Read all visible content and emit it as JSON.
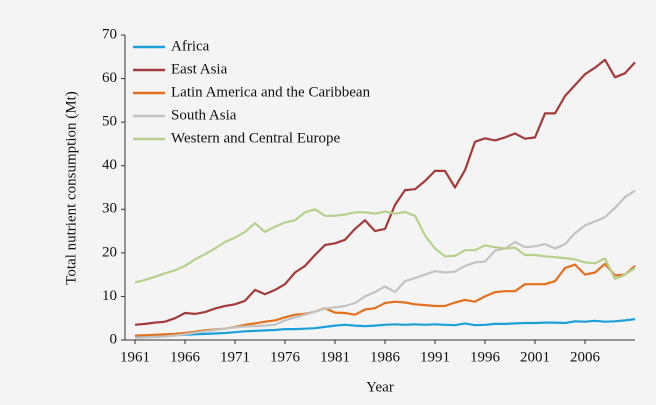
{
  "chart_data": {
    "type": "line",
    "x_label": "Year",
    "y_label": "Total nutrient consumption (Mt)",
    "x": [
      1961,
      1962,
      1963,
      1964,
      1965,
      1966,
      1967,
      1968,
      1969,
      1970,
      1971,
      1972,
      1973,
      1974,
      1975,
      1976,
      1977,
      1978,
      1979,
      1980,
      1981,
      1982,
      1983,
      1984,
      1985,
      1986,
      1987,
      1988,
      1989,
      1990,
      1991,
      1992,
      1993,
      1994,
      1995,
      1996,
      1997,
      1998,
      1999,
      2000,
      2001,
      2002,
      2003,
      2004,
      2005,
      2006,
      2007,
      2008,
      2009,
      2010,
      2011
    ],
    "xlim": [
      1960,
      2011
    ],
    "xticks": [
      1961,
      1966,
      1971,
      1976,
      1981,
      1986,
      1991,
      1996,
      2001,
      2006
    ],
    "ylim": [
      0,
      70
    ],
    "yticks": [
      0,
      10,
      20,
      30,
      40,
      50,
      60,
      70
    ],
    "legend": "top-left",
    "series": [
      {
        "name": "Africa",
        "color": "#1ba1d8",
        "values": [
          0.8,
          0.9,
          1.0,
          1.0,
          1.1,
          1.2,
          1.3,
          1.4,
          1.5,
          1.6,
          1.8,
          2.0,
          2.1,
          2.2,
          2.3,
          2.5,
          2.5,
          2.6,
          2.7,
          3.0,
          3.3,
          3.5,
          3.3,
          3.2,
          3.3,
          3.5,
          3.6,
          3.5,
          3.6,
          3.5,
          3.6,
          3.5,
          3.4,
          3.8,
          3.4,
          3.5,
          3.7,
          3.7,
          3.8,
          3.9,
          3.9,
          4.0,
          4.0,
          3.9,
          4.3,
          4.2,
          4.4,
          4.2,
          4.3,
          4.5,
          4.8
        ]
      },
      {
        "name": "East Asia",
        "color": "#a33b3b",
        "values": [
          3.5,
          3.7,
          4.0,
          4.2,
          5.0,
          6.2,
          6.0,
          6.4,
          7.2,
          7.8,
          8.2,
          9.0,
          11.5,
          10.5,
          11.5,
          12.8,
          15.5,
          17,
          19.5,
          21.8,
          22.2,
          23,
          25.5,
          27.5,
          25,
          25.5,
          31,
          34.4,
          34.6,
          36.5,
          38.8,
          38.8,
          35,
          39,
          45.5,
          46.3,
          45.8,
          46.5,
          47.4,
          46.2,
          46.5,
          52,
          52,
          56,
          58.5,
          61,
          62.5,
          64.3,
          60.3,
          61.2,
          63.7
        ]
      },
      {
        "name": "Latin America and the Caribbean",
        "color": "#e2701f",
        "values": [
          1.0,
          1.1,
          1.2,
          1.3,
          1.4,
          1.6,
          1.9,
          2.2,
          2.4,
          2.6,
          3.0,
          3.5,
          3.8,
          4.2,
          4.5,
          5.2,
          5.8,
          6.0,
          6.5,
          7.3,
          6.3,
          6.2,
          5.8,
          7.0,
          7.3,
          8.5,
          8.8,
          8.6,
          8.2,
          8.0,
          7.8,
          7.8,
          8.6,
          9.2,
          8.8,
          10.0,
          11.0,
          11.2,
          11.2,
          12.8,
          12.8,
          12.8,
          13.5,
          16.5,
          17.3,
          15.0,
          15.5,
          17.5,
          14.8,
          15.0,
          17.0
        ]
      },
      {
        "name": "South Asia",
        "color": "#c3c3c3",
        "values": [
          0.5,
          0.6,
          0.7,
          0.8,
          1.0,
          1.3,
          1.7,
          2.0,
          2.3,
          2.6,
          2.9,
          3.1,
          3.2,
          3.3,
          3.5,
          4.5,
          5.2,
          5.8,
          6.5,
          7.2,
          7.5,
          7.8,
          8.5,
          10,
          11,
          12.3,
          11,
          13.5,
          14.2,
          15,
          15.8,
          15.5,
          15.7,
          17,
          17.8,
          18,
          20.5,
          21,
          22.5,
          21.3,
          21.5,
          22,
          21,
          22,
          24.5,
          26.3,
          27.2,
          28.2,
          30.3,
          32.8,
          34.3
        ]
      },
      {
        "name": "Western and Central Europe",
        "color": "#b7d08c",
        "values": [
          13.2,
          13.8,
          14.5,
          15.3,
          16,
          17,
          18.5,
          19.7,
          21,
          22.5,
          23.5,
          24.8,
          26.8,
          24.8,
          26,
          27,
          27.5,
          29.3,
          30,
          28.5,
          28.5,
          28.8,
          29.3,
          29.3,
          29,
          29.5,
          29,
          29.4,
          28.5,
          24,
          21,
          19.2,
          19.3,
          20.6,
          20.6,
          21.7,
          21.3,
          21,
          21.2,
          19.5,
          19.5,
          19.2,
          19,
          18.8,
          18.5,
          17.8,
          17.6,
          18.7,
          14,
          15,
          16.5
        ]
      }
    ]
  }
}
